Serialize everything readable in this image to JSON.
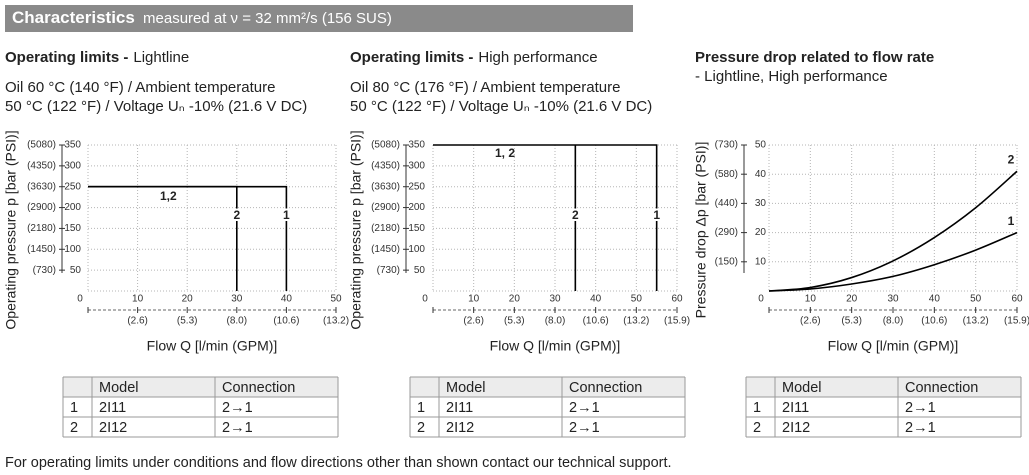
{
  "header": {
    "title": "Characteristics",
    "subtitle": "measured at ν = 32 mm²/s (156 SUS)"
  },
  "chart_data": [
    {
      "type": "line",
      "title": "Operating limits -",
      "subtitle": "Lightline",
      "conditions": [
        "Oil 60 °C (140 °F) / Ambient temperature",
        "50 °C (122 °F) / Voltage Uₙ -10% (21.6 V DC)"
      ],
      "xlabel": "Flow Q [l/min (GPM)]",
      "ylabel": "Operating pressure p [bar (PSI)]",
      "xlim": [
        0,
        50
      ],
      "ylim": [
        0,
        350
      ],
      "xticks": [
        0,
        10,
        20,
        30,
        40,
        50
      ],
      "xticks_gpm": [
        {
          "value": 10,
          "label": "(2.6)"
        },
        {
          "value": 20,
          "label": "(5.3)"
        },
        {
          "value": 30,
          "label": "(8.0)"
        },
        {
          "value": 40,
          "label": "(10.6)"
        },
        {
          "value": 50,
          "label": "(13.2)"
        }
      ],
      "yticks": [
        50,
        100,
        150,
        200,
        250,
        300,
        350
      ],
      "yticks_psi": [
        {
          "value": 50,
          "label": "(730)"
        },
        {
          "value": 100,
          "label": "(1450)"
        },
        {
          "value": 150,
          "label": "(2180)"
        },
        {
          "value": 200,
          "label": "(2900)"
        },
        {
          "value": 250,
          "label": "(3630)"
        },
        {
          "value": 300,
          "label": "(4350)"
        },
        {
          "value": 350,
          "label": "(5080)"
        }
      ],
      "grid": true,
      "smooth": false,
      "annotation": "1,2",
      "series": [
        {
          "name": "1",
          "color": "#000000",
          "x": [
            0,
            40,
            40
          ],
          "values": [
            250,
            250,
            0
          ]
        },
        {
          "name": "2",
          "color": "#000000",
          "x": [
            0,
            30,
            30
          ],
          "values": [
            250,
            250,
            0
          ]
        }
      ]
    },
    {
      "type": "line",
      "title": "Operating limits -",
      "subtitle": "High performance",
      "conditions": [
        "Oil 80 °C (176 °F) / Ambient temperature",
        "50 °C (122 °F) / Voltage Uₙ -10% (21.6 V DC)"
      ],
      "xlabel": "Flow Q [l/min (GPM)]",
      "ylabel": "Operating pressure p [bar (PSI)]",
      "xlim": [
        0,
        60
      ],
      "ylim": [
        0,
        350
      ],
      "xticks": [
        0,
        10,
        20,
        30,
        40,
        50,
        60
      ],
      "xticks_gpm": [
        {
          "value": 10,
          "label": "(2.6)"
        },
        {
          "value": 20,
          "label": "(5.3)"
        },
        {
          "value": 30,
          "label": "(8.0)"
        },
        {
          "value": 40,
          "label": "(10.6)"
        },
        {
          "value": 50,
          "label": "(13.2)"
        },
        {
          "value": 60,
          "label": "(15.9)"
        }
      ],
      "yticks": [
        50,
        100,
        150,
        200,
        250,
        300,
        350
      ],
      "yticks_psi": [
        {
          "value": 50,
          "label": "(730)"
        },
        {
          "value": 100,
          "label": "(1450)"
        },
        {
          "value": 150,
          "label": "(2180)"
        },
        {
          "value": 200,
          "label": "(2900)"
        },
        {
          "value": 250,
          "label": "(3630)"
        },
        {
          "value": 300,
          "label": "(4350)"
        },
        {
          "value": 350,
          "label": "(5080)"
        }
      ],
      "grid": true,
      "smooth": false,
      "annotation": "1, 2",
      "series": [
        {
          "name": "1",
          "color": "#000000",
          "x": [
            0,
            55,
            55
          ],
          "values": [
            350,
            350,
            0
          ]
        },
        {
          "name": "2",
          "color": "#000000",
          "x": [
            35,
            35
          ],
          "values": [
            350,
            0
          ]
        }
      ]
    },
    {
      "type": "line",
      "title": "Pressure drop related to flow rate",
      "subtitle": "- Lightline, High performance",
      "xlabel": "Flow Q [l/min (GPM)]",
      "ylabel": "Pressure drop Δp [bar (PSI)]",
      "xlim": [
        0,
        60
      ],
      "ylim": [
        0,
        50
      ],
      "xticks": [
        0,
        10,
        20,
        30,
        40,
        50,
        60
      ],
      "xticks_gpm": [
        {
          "value": 10,
          "label": "(2.6)"
        },
        {
          "value": 20,
          "label": "(5.3)"
        },
        {
          "value": 30,
          "label": "(8.0)"
        },
        {
          "value": 40,
          "label": "(10.6)"
        },
        {
          "value": 50,
          "label": "(13.2)"
        },
        {
          "value": 60,
          "label": "(15.9)"
        }
      ],
      "yticks": [
        10,
        20,
        30,
        40,
        50
      ],
      "yticks_psi": [
        {
          "value": 10,
          "label": "(150)"
        },
        {
          "value": 20,
          "label": "(290)"
        },
        {
          "value": 30,
          "label": "(440)"
        },
        {
          "value": 40,
          "label": "(580)"
        },
        {
          "value": 50,
          "label": "(730)"
        }
      ],
      "grid": true,
      "smooth": true,
      "series": [
        {
          "name": "1",
          "color": "#000000",
          "x": [
            0,
            10,
            20,
            30,
            40,
            50,
            60
          ],
          "values": [
            0,
            0.7,
            2.4,
            5,
            9,
            14,
            20
          ]
        },
        {
          "name": "2",
          "color": "#000000",
          "x": [
            0,
            10,
            20,
            30,
            40,
            50,
            60
          ],
          "values": [
            0,
            1.2,
            4.6,
            10.3,
            18.3,
            28.5,
            41
          ]
        }
      ]
    }
  ],
  "tables": [
    {
      "columns": [
        "Model",
        "Connection"
      ],
      "rows": [
        [
          "1",
          "2I11",
          "2→1"
        ],
        [
          "2",
          "2I12",
          "2→1"
        ]
      ]
    },
    {
      "columns": [
        "Model",
        "Connection"
      ],
      "rows": [
        [
          "1",
          "2I11",
          "2→1"
        ],
        [
          "2",
          "2I12",
          "2→1"
        ]
      ]
    },
    {
      "columns": [
        "Model",
        "Connection"
      ],
      "rows": [
        [
          "1",
          "2I11",
          "2→1"
        ],
        [
          "2",
          "2I12",
          "2→1"
        ]
      ]
    }
  ],
  "footnote": "For operating limits under conditions and flow directions other than shown contact our technical support."
}
